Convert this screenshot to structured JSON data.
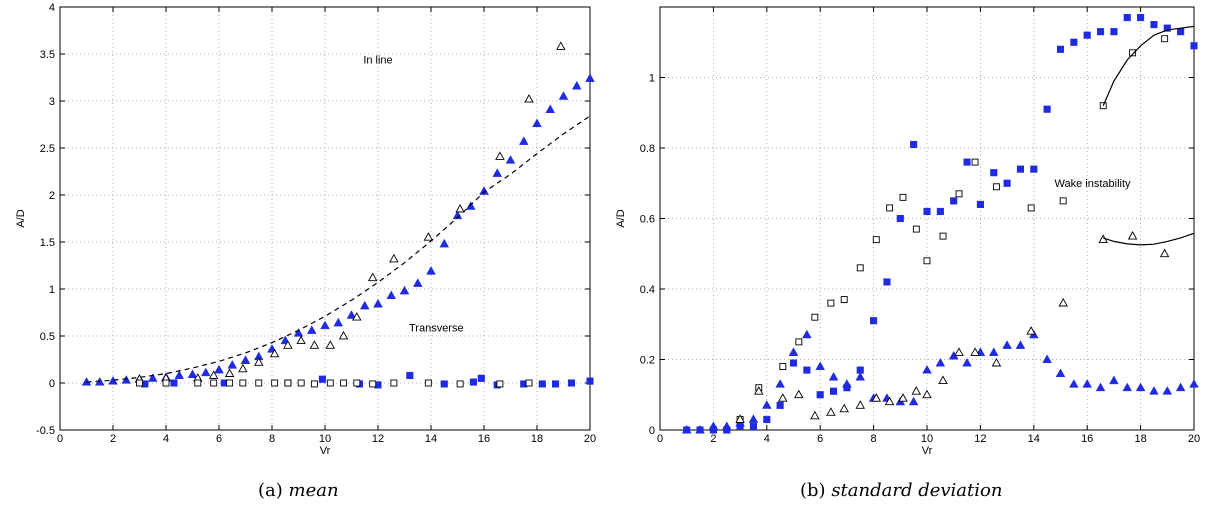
{
  "colors": {
    "blue": "#1f2be0",
    "black": "#000000",
    "grid": "#9a9a9a"
  },
  "captions": {
    "a": {
      "label": "(a)",
      "text": "mean"
    },
    "b": {
      "label": "(b)",
      "text": "standard deviation"
    }
  },
  "chart_data": [
    {
      "type": "scatter",
      "title": "",
      "xlabel": "Vr",
      "ylabel": "A/D",
      "xlim": [
        0,
        20
      ],
      "ylim": [
        -0.5,
        4
      ],
      "xticks": [
        0,
        2,
        4,
        6,
        8,
        10,
        12,
        14,
        16,
        18,
        20
      ],
      "yticks": [
        -0.5,
        0,
        0.5,
        1,
        1.5,
        2,
        2.5,
        3,
        3.5,
        4
      ],
      "ytick_labels": [
        "-0.5",
        "0",
        "0.5",
        "1",
        "1.5",
        "2",
        "2.5",
        "3",
        "3.5",
        "4"
      ],
      "grid": true,
      "annotations": [
        {
          "text": "In line",
          "x": 12.0,
          "y": 3.4
        },
        {
          "text": "Transverse",
          "x": 14.2,
          "y": 0.55
        }
      ],
      "series": [
        {
          "marker": "triangle-filled",
          "color": "blue",
          "x": [
            1.0,
            1.5,
            2.0,
            2.5,
            3.0,
            3.5,
            4.0,
            4.5,
            5.0,
            5.5,
            6.0,
            6.5,
            7.0,
            7.5,
            8.0,
            8.5,
            9.0,
            9.5,
            10.0,
            10.5,
            11.0,
            11.5,
            12.0,
            12.5,
            13.0,
            13.5,
            14.0,
            14.5,
            15.0,
            15.5,
            16.0,
            16.5,
            17.0,
            17.5,
            18.0,
            18.5,
            19.0,
            19.5,
            20.0
          ],
          "y": [
            0.01,
            0.01,
            0.02,
            0.03,
            0.04,
            0.05,
            0.06,
            0.08,
            0.09,
            0.11,
            0.14,
            0.19,
            0.24,
            0.28,
            0.36,
            0.45,
            0.53,
            0.56,
            0.61,
            0.64,
            0.72,
            0.82,
            0.84,
            0.93,
            0.98,
            1.06,
            1.19,
            1.48,
            1.78,
            1.88,
            2.04,
            2.23,
            2.37,
            2.57,
            2.76,
            2.91,
            3.05,
            3.16,
            3.24
          ]
        },
        {
          "marker": "triangle-open",
          "color": "black",
          "x": [
            3.0,
            4.0,
            5.2,
            5.8,
            6.4,
            6.9,
            7.5,
            8.1,
            8.6,
            9.1,
            9.6,
            10.2,
            10.7,
            11.2,
            11.8,
            12.6,
            13.9,
            15.1,
            16.6,
            17.7,
            18.9
          ],
          "y": [
            0.04,
            0.05,
            0.05,
            0.08,
            0.1,
            0.15,
            0.22,
            0.31,
            0.4,
            0.45,
            0.4,
            0.4,
            0.5,
            0.7,
            1.12,
            1.32,
            1.55,
            1.85,
            2.41,
            3.02,
            3.58
          ]
        },
        {
          "marker": "square-filled",
          "color": "blue",
          "x": [
            3.2,
            4.3,
            6.2,
            8.6,
            9.9,
            11.3,
            12.0,
            13.2,
            14.5,
            15.6,
            15.9,
            16.5,
            17.5,
            18.2,
            18.7,
            19.3,
            20.0
          ],
          "y": [
            -0.01,
            0.0,
            0.0,
            0.0,
            0.04,
            -0.01,
            -0.02,
            0.08,
            -0.01,
            0.01,
            0.05,
            -0.02,
            -0.01,
            -0.01,
            -0.01,
            0.0,
            0.02
          ]
        },
        {
          "marker": "square-open",
          "color": "black",
          "x": [
            3.0,
            4.0,
            5.2,
            5.8,
            6.4,
            6.9,
            7.5,
            8.1,
            8.6,
            9.1,
            9.6,
            10.2,
            10.7,
            11.2,
            11.8,
            12.6,
            13.9,
            15.1,
            16.6,
            17.7
          ],
          "y": [
            0.0,
            0.0,
            0.0,
            0.0,
            0.0,
            0.0,
            0.0,
            0.0,
            0.0,
            0.0,
            -0.01,
            0.0,
            0.0,
            0.0,
            -0.01,
            0.0,
            0.0,
            -0.01,
            -0.01,
            0.0
          ]
        },
        {
          "marker": "dashed-line",
          "color": "black",
          "x": [
            1,
            2,
            3,
            4,
            5,
            6,
            7,
            8,
            9,
            10,
            11,
            12,
            13,
            14,
            15,
            16,
            17,
            18,
            19,
            20
          ],
          "y": [
            0.01,
            0.03,
            0.06,
            0.1,
            0.16,
            0.23,
            0.32,
            0.43,
            0.56,
            0.71,
            0.88,
            1.07,
            1.28,
            1.51,
            1.76,
            2.03,
            2.22,
            2.44,
            2.65,
            2.84
          ]
        }
      ]
    },
    {
      "type": "scatter",
      "title": "",
      "xlabel": "Vr",
      "ylabel": "A/D",
      "xlim": [
        0,
        20
      ],
      "ylim": [
        0,
        1.2
      ],
      "xticks": [
        0,
        2,
        4,
        6,
        8,
        10,
        12,
        14,
        16,
        18,
        20
      ],
      "yticks": [
        0,
        0.2,
        0.4,
        0.6,
        0.8,
        1.0
      ],
      "ytick_labels": [
        "0",
        "0.2",
        "0.4",
        "0.6",
        "0.8",
        "1"
      ],
      "grid": true,
      "annotations": [
        {
          "text": "Wake instability",
          "x": 16.2,
          "y": 0.69
        }
      ],
      "series": [
        {
          "marker": "square-filled",
          "color": "blue",
          "x": [
            1.0,
            1.5,
            2.0,
            2.5,
            3.0,
            3.5,
            4.0,
            4.5,
            5.0,
            5.5,
            6.0,
            6.5,
            7.0,
            7.5,
            8.0,
            8.5,
            9.0,
            9.5,
            10.0,
            10.5,
            11.0,
            11.5,
            12.0,
            12.5,
            13.0,
            13.5,
            14.0,
            14.5,
            15.0,
            15.5,
            16.0,
            16.5,
            17.0,
            17.5,
            18.0,
            18.5,
            19.0,
            19.5,
            20.0
          ],
          "y": [
            0.0,
            0.0,
            0.0,
            0.0,
            0.01,
            0.01,
            0.03,
            0.07,
            0.19,
            0.17,
            0.1,
            0.11,
            0.12,
            0.17,
            0.31,
            0.42,
            0.6,
            0.81,
            0.62,
            0.62,
            0.65,
            0.76,
            0.64,
            0.73,
            0.7,
            0.74,
            0.74,
            0.91,
            1.08,
            1.1,
            1.12,
            1.13,
            1.13,
            1.17,
            1.17,
            1.15,
            1.14,
            1.13,
            1.09
          ]
        },
        {
          "marker": "triangle-filled",
          "color": "blue",
          "x": [
            1.0,
            1.5,
            2.0,
            2.5,
            3.0,
            3.5,
            4.0,
            4.5,
            5.0,
            5.5,
            6.0,
            6.5,
            7.0,
            7.5,
            8.0,
            8.5,
            9.0,
            9.5,
            10.0,
            10.5,
            11.0,
            11.5,
            12.0,
            12.5,
            13.0,
            13.5,
            14.0,
            14.5,
            15.0,
            15.5,
            16.0,
            16.5,
            17.0,
            17.5,
            18.0,
            18.5,
            19.0,
            19.5,
            20.0
          ],
          "y": [
            0.0,
            0.0,
            0.01,
            0.01,
            0.02,
            0.03,
            0.07,
            0.13,
            0.22,
            0.27,
            0.18,
            0.15,
            0.13,
            0.15,
            0.09,
            0.09,
            0.08,
            0.08,
            0.17,
            0.19,
            0.21,
            0.19,
            0.22,
            0.22,
            0.24,
            0.24,
            0.27,
            0.2,
            0.16,
            0.13,
            0.13,
            0.12,
            0.14,
            0.12,
            0.12,
            0.11,
            0.11,
            0.12,
            0.13
          ]
        },
        {
          "marker": "square-open",
          "color": "black",
          "x": [
            3.0,
            3.7,
            4.6,
            5.2,
            5.8,
            6.4,
            6.9,
            7.5,
            8.1,
            8.6,
            9.1,
            9.6,
            10.0,
            10.6,
            11.2,
            11.8,
            12.6,
            13.9,
            15.1,
            16.6,
            17.7,
            18.9
          ],
          "y": [
            0.03,
            0.12,
            0.18,
            0.25,
            0.32,
            0.36,
            0.37,
            0.46,
            0.54,
            0.63,
            0.66,
            0.57,
            0.48,
            0.55,
            0.67,
            0.76,
            0.69,
            0.63,
            0.65,
            0.92,
            1.07,
            1.11
          ]
        },
        {
          "marker": "triangle-open",
          "color": "black",
          "x": [
            3.0,
            3.7,
            4.6,
            5.2,
            5.8,
            6.4,
            6.9,
            7.5,
            8.1,
            8.6,
            9.1,
            9.6,
            10.0,
            10.6,
            11.2,
            11.8,
            12.6,
            13.9,
            15.1,
            16.6,
            17.7,
            18.9
          ],
          "y": [
            0.03,
            0.11,
            0.09,
            0.1,
            0.04,
            0.05,
            0.06,
            0.07,
            0.09,
            0.08,
            0.09,
            0.11,
            0.1,
            0.14,
            0.22,
            0.22,
            0.19,
            0.28,
            0.36,
            0.54,
            0.55,
            0.5
          ]
        },
        {
          "marker": "solid-line",
          "color": "black",
          "x": [
            16.6,
            17.0,
            17.5,
            18.0,
            18.5,
            19.0,
            19.5,
            20.0
          ],
          "y": [
            0.92,
            0.99,
            1.05,
            1.09,
            1.12,
            1.135,
            1.14,
            1.145
          ]
        },
        {
          "marker": "solid-line",
          "color": "black",
          "x": [
            16.6,
            17.0,
            17.5,
            18.0,
            18.5,
            19.0,
            19.5,
            20.0
          ],
          "y": [
            0.545,
            0.535,
            0.528,
            0.525,
            0.527,
            0.535,
            0.545,
            0.558
          ]
        }
      ]
    }
  ]
}
